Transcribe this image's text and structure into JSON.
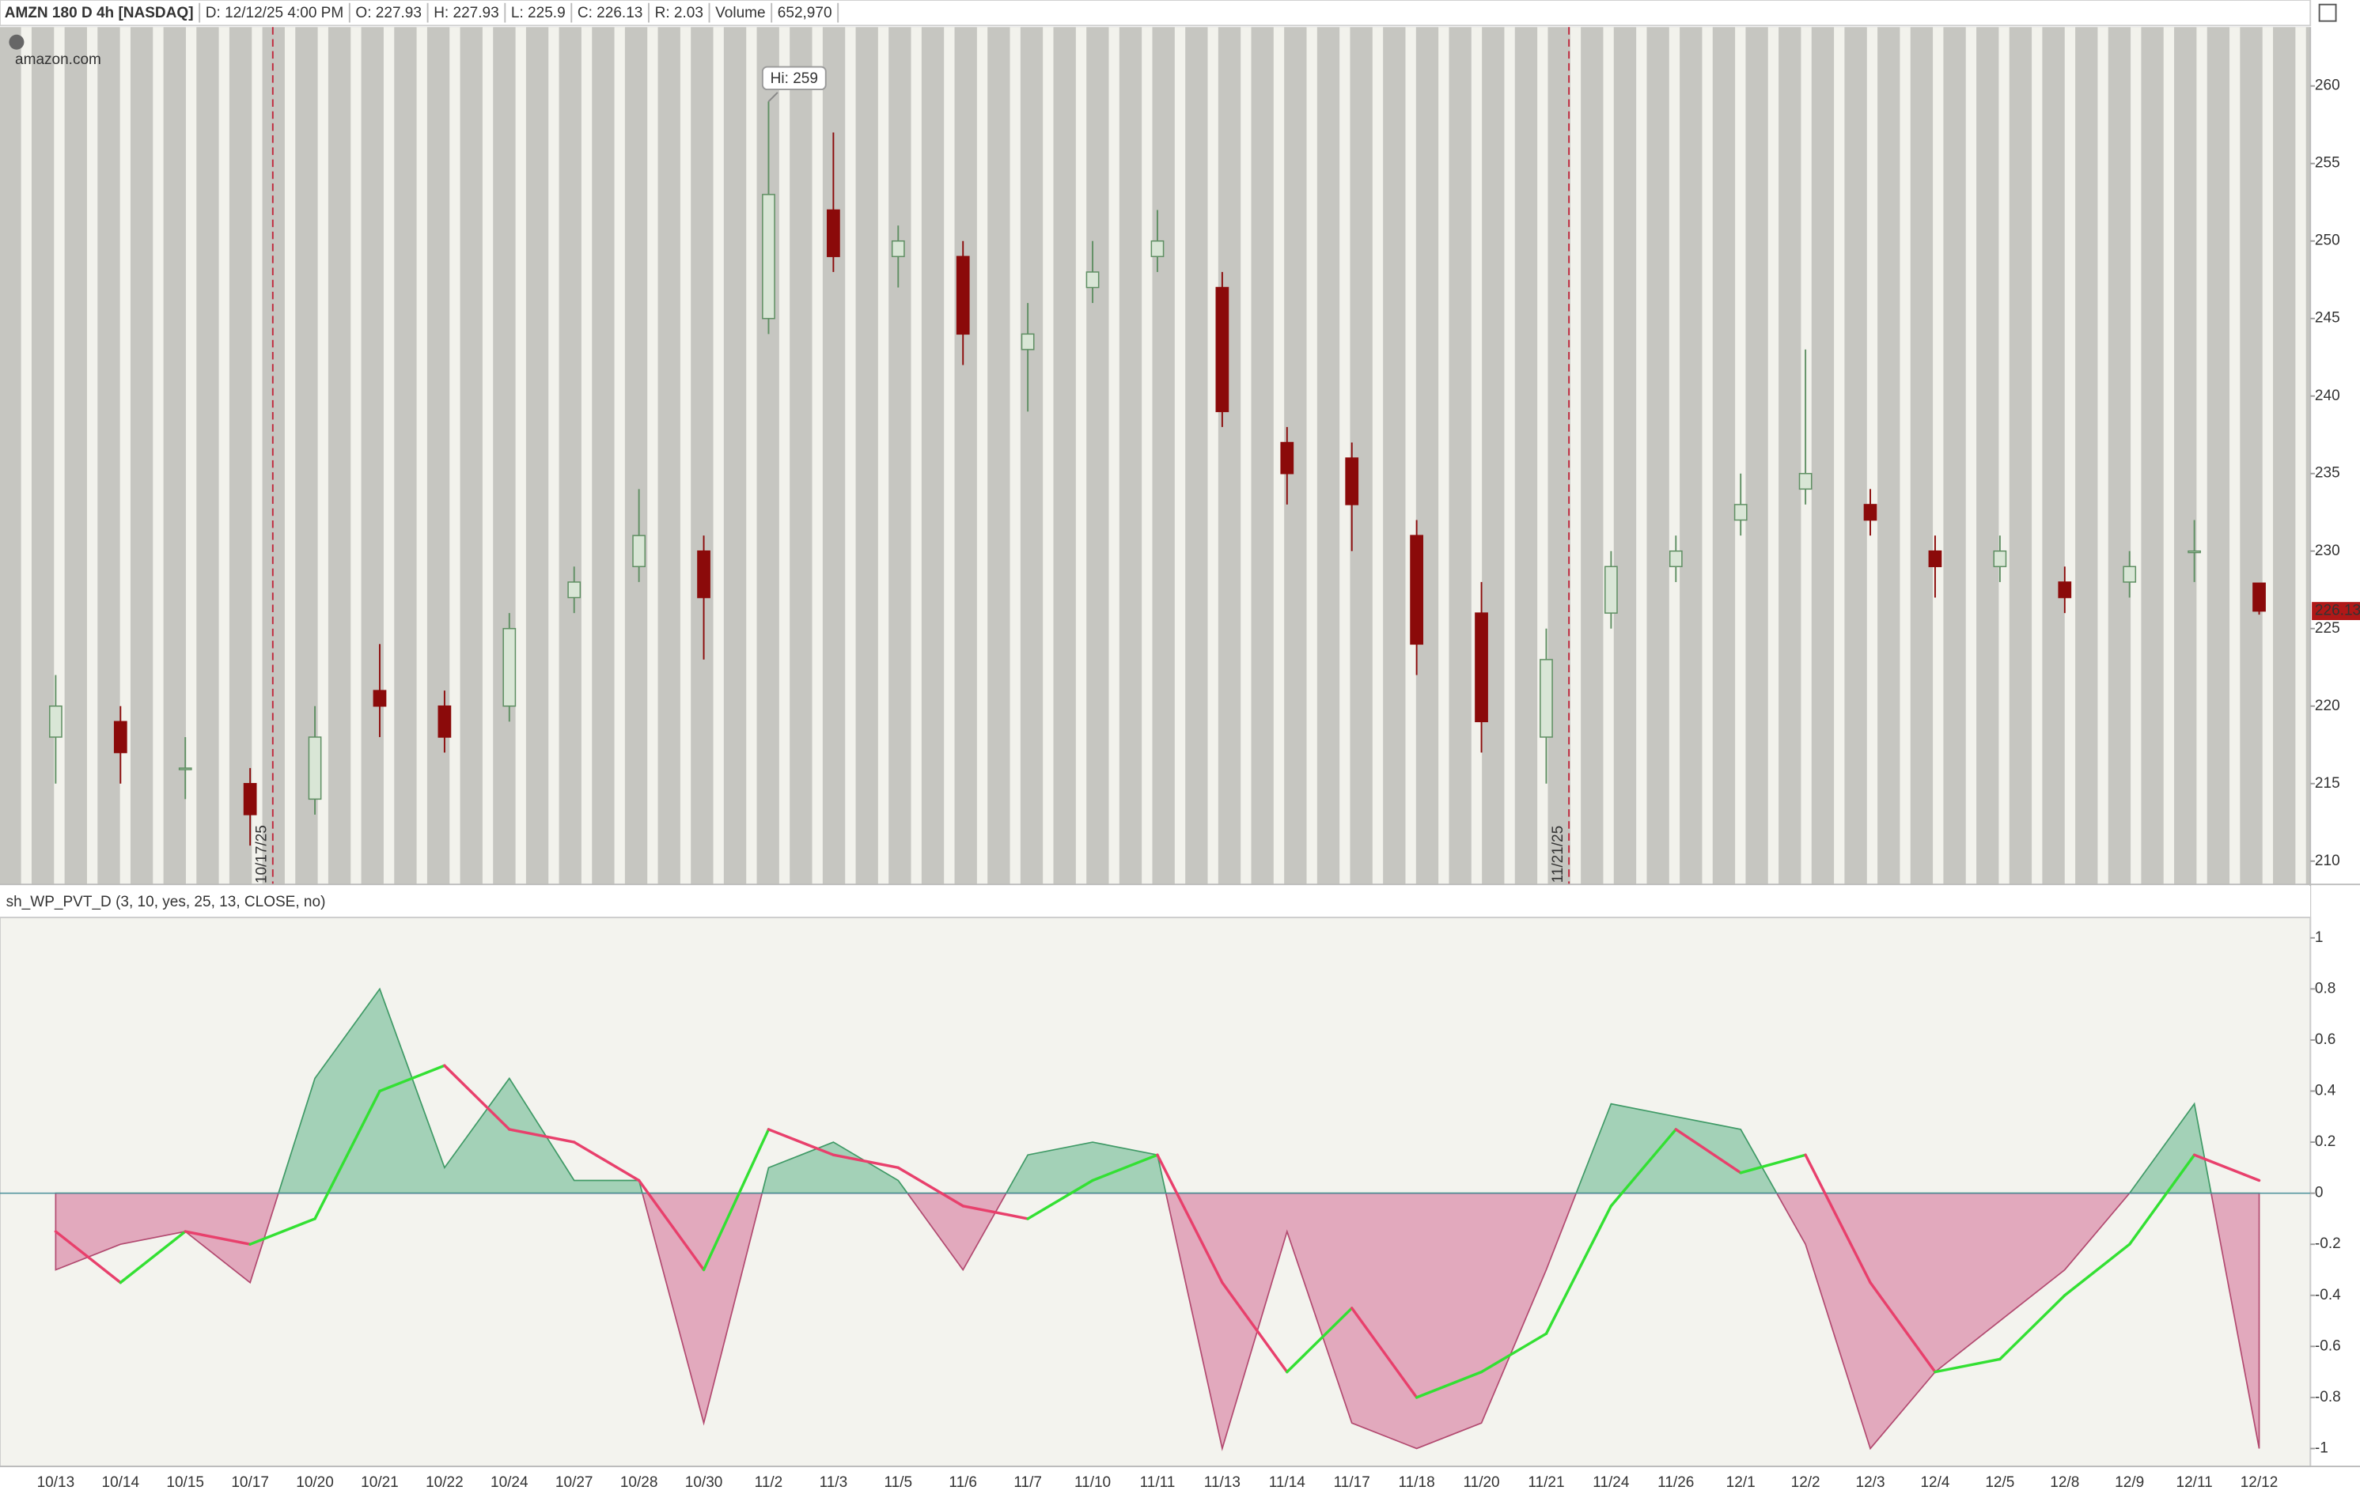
{
  "header": {
    "symbol": "AMZN 180 D 4h [NASDAQ]",
    "fields": [
      "D: 12/12/25 4:00 PM",
      "O: 227.93",
      "H: 227.93",
      "L: 225.9",
      "C: 226.13",
      "R: 2.03",
      "Volume",
      "652,970"
    ]
  },
  "logo": "amazon.com",
  "chart_data": [
    {
      "type": "candlestick",
      "categories": [
        "10/13",
        "10/14",
        "10/15",
        "10/17",
        "10/20",
        "10/21",
        "10/22",
        "10/24",
        "10/27",
        "10/28",
        "10/30",
        "11/2",
        "11/3",
        "11/5",
        "11/6",
        "11/7",
        "11/10",
        "11/11",
        "11/13",
        "11/14",
        "11/17",
        "11/18",
        "11/20",
        "11/21",
        "11/24",
        "11/26",
        "12/1",
        "12/2",
        "12/3",
        "12/4",
        "12/5",
        "12/8",
        "12/9",
        "12/11",
        "12/12"
      ],
      "open": [
        218,
        219,
        216,
        215,
        214,
        221,
        220,
        220,
        227,
        229,
        230,
        245,
        252,
        249,
        249,
        243,
        247,
        249,
        247,
        237,
        236,
        231,
        226,
        218,
        226,
        229,
        232,
        234,
        233,
        230,
        229,
        228,
        228,
        230,
        227.93
      ],
      "high": [
        222,
        220,
        218,
        216,
        220,
        224,
        221,
        226,
        229,
        234,
        231,
        259,
        257,
        251,
        250,
        246,
        250,
        252,
        248,
        238,
        237,
        232,
        228,
        225,
        230,
        231,
        235,
        243,
        234,
        231,
        231,
        229,
        230,
        232,
        227.93
      ],
      "low": [
        215,
        215,
        214,
        211,
        213,
        218,
        217,
        219,
        226,
        228,
        223,
        244,
        248,
        247,
        242,
        239,
        246,
        248,
        238,
        233,
        230,
        222,
        217,
        215,
        225,
        228,
        231,
        233,
        231,
        227,
        228,
        226,
        227,
        228,
        225.9
      ],
      "close": [
        220,
        217,
        216,
        213,
        218,
        220,
        218,
        225,
        228,
        231,
        227,
        253,
        249,
        250,
        244,
        244,
        248,
        250,
        239,
        235,
        233,
        224,
        219,
        223,
        229,
        230,
        233,
        235,
        232,
        229,
        230,
        227,
        229,
        230,
        226.13
      ],
      "up_color": "#5f8f63",
      "down_color": "#8b0a0a",
      "ylim": [
        208.5,
        263.8
      ],
      "yticks": [
        210,
        215,
        220,
        225,
        230,
        235,
        240,
        245,
        250,
        255,
        260
      ],
      "annotation": "Hi: 259",
      "markers": [
        "10/17/25",
        "11/21/25"
      ],
      "marker_color": "#c0283c",
      "last_price_color": "#b01818"
    },
    {
      "type": "oscillator",
      "title": "sh_WP_PVT_D (3, 10, yes, 25, 13, CLOSE, no)",
      "values": [
        -0.3,
        -0.2,
        -0.15,
        -0.35,
        0.45,
        0.8,
        0.1,
        0.45,
        0.05,
        0.05,
        -0.9,
        0.1,
        0.2,
        0.05,
        -0.3,
        0.15,
        0.2,
        0.15,
        -1,
        -0.15,
        -0.9,
        -1,
        -0.9,
        -0.3,
        0.35,
        0.3,
        0.25,
        -0.2,
        -1,
        -0.7,
        -0.5,
        -0.3,
        0,
        0.35,
        -1
      ],
      "signal": [
        -0.15,
        -0.35,
        -0.15,
        -0.2,
        -0.1,
        0.4,
        0.5,
        0.25,
        0.2,
        0.05,
        -0.3,
        0.25,
        0.15,
        0.1,
        -0.05,
        -0.1,
        0.05,
        0.15,
        -0.35,
        -0.7,
        -0.45,
        -0.8,
        -0.7,
        -0.55,
        -0.05,
        0.25,
        0.08,
        0.15,
        -0.35,
        -0.7,
        -0.65,
        -0.4,
        -0.2,
        0.15,
        0.05
      ],
      "positive_color": "#a3d1b7",
      "negative_color": "#e2a9bd",
      "signal_up_color": "#33e033",
      "signal_down_color": "#e8406c",
      "ylim": [
        -1.07,
        1.08
      ],
      "yticks": [
        1,
        0.8,
        0.6,
        0.4,
        0.2,
        0,
        -0.2,
        -0.4,
        -0.6,
        -0.8,
        -1
      ],
      "zero_line": true
    }
  ]
}
